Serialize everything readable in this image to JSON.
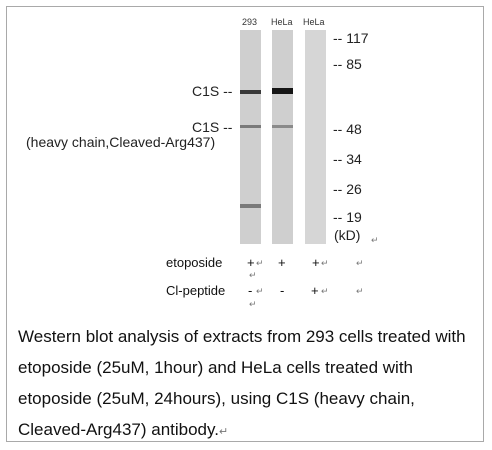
{
  "lanes": [
    "293",
    "HeLa",
    "HeLa"
  ],
  "molecular_weights": [
    "117",
    "85",
    "48",
    "34",
    "26",
    "19"
  ],
  "mw_prefix": "--",
  "mw_unit": "(kD)",
  "band_labels": {
    "c1s": "C1S --",
    "c1s_heavy": "C1S --",
    "c1s_heavy_sub": "(heavy chain,Cleaved-Arg437)"
  },
  "conditions": {
    "etoposide": {
      "label": "etoposide",
      "values": [
        "+",
        "+",
        "+"
      ]
    },
    "cl_peptide": {
      "label": "Cl-peptide",
      "values": [
        "-",
        "-",
        "+"
      ]
    }
  },
  "return_mark": "↵",
  "caption": "Western blot analysis of extracts from 293 cells treated with etoposide (25uM, 1hour) and HeLa cells treated with etoposide (25uM, 24hours), using C1S (heavy chain, Cleaved-Arg437) antibody."
}
